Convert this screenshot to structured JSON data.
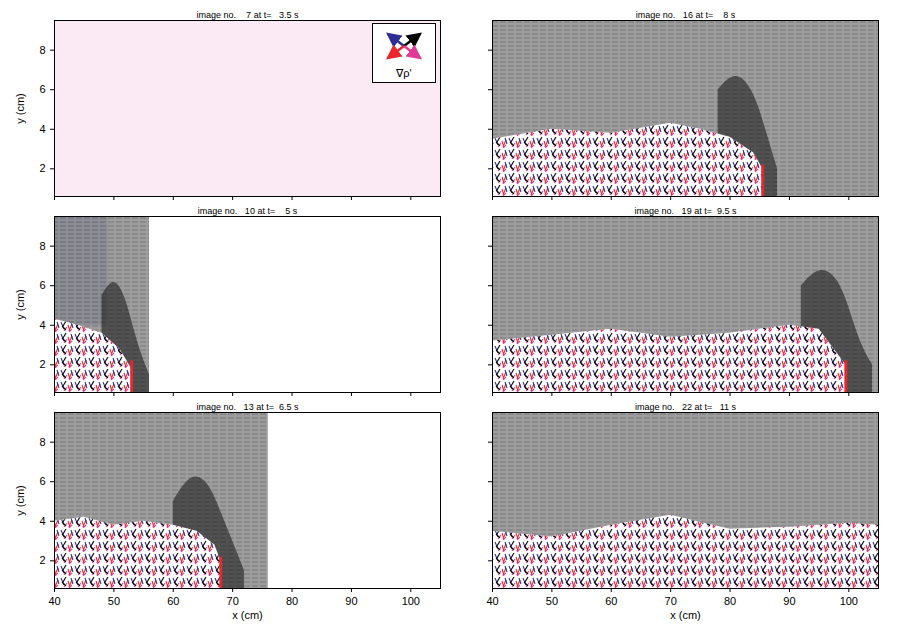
{
  "chart_data": {
    "type": "vector_field",
    "xlim": [
      40,
      105
    ],
    "ylim": [
      0.6,
      9.5
    ],
    "xticks": [
      40,
      50,
      60,
      70,
      80,
      90,
      100
    ],
    "yticks": [
      2,
      4,
      6,
      8
    ],
    "arrow_key": {
      "label": "∇ρ'",
      "colors": [
        "#2e2e96",
        "#000000",
        "#e8262b",
        "#e23a96"
      ]
    },
    "panels": [
      {
        "title": "image no.    7 at t=   3.5 s",
        "y_label": "y (cm)",
        "tick_labels": "y",
        "legend": "top-right",
        "tint": {
          "x": [
            40,
            105
          ],
          "y": [
            0.6,
            9.5
          ],
          "color": "#f9e0ee"
        },
        "shade_x_end": null,
        "head": null,
        "layer": null,
        "front": null
      },
      {
        "title": "image no.   10 at t=    5 s",
        "y_label": "y (cm)",
        "tick_labels": "y",
        "tint": {
          "x": [
            40,
            49
          ],
          "y": [
            4,
            9.5
          ],
          "color": "#6064b4"
        },
        "shade_x_end": 56,
        "head": {
          "x": [
            48,
            50,
            52,
            54,
            56
          ],
          "top": [
            5.5,
            6.5,
            5.5,
            3,
            1.5
          ]
        },
        "layer": {
          "x": [
            40,
            44,
            48,
            51,
            53
          ],
          "top": [
            4.3,
            4.0,
            3.6,
            2.8,
            1.8
          ]
        },
        "front": {
          "x": 53,
          "y": [
            0.6,
            2.2
          ]
        }
      },
      {
        "title": "image no.   13 at t=  6.5 s",
        "y_label": "y (cm)",
        "x_label": "x (cm)",
        "tick_labels": true,
        "tint": null,
        "shade_x_end": 76,
        "head": {
          "x": [
            60,
            63,
            66,
            68,
            70,
            72
          ],
          "top": [
            5,
            6.5,
            6,
            4.5,
            3,
            1.5
          ]
        },
        "layer": {
          "x": [
            40,
            45,
            50,
            55,
            60,
            64,
            67,
            68
          ],
          "top": [
            4.0,
            4.2,
            3.8,
            4.0,
            3.8,
            3.5,
            2.8,
            2.0
          ]
        },
        "front": {
          "x": 68,
          "y": [
            0.6,
            2.2
          ]
        }
      },
      {
        "title": "image no.   16 at t=    8 s",
        "tick_labels": false,
        "tint": null,
        "shade_x_end": 105,
        "head": {
          "x": [
            78,
            81,
            84,
            86,
            88
          ],
          "top": [
            6,
            7,
            6,
            4,
            2
          ]
        },
        "layer": {
          "x": [
            40,
            50,
            60,
            70,
            75,
            80,
            84,
            85.5
          ],
          "top": [
            3.5,
            4.0,
            3.8,
            4.3,
            4.0,
            3.6,
            2.8,
            2.0
          ]
        },
        "front": {
          "x": 85.5,
          "y": [
            0.6,
            2.2
          ]
        }
      },
      {
        "title": "image no.   19 at t=  9.5 s",
        "tick_labels": false,
        "tint": null,
        "shade_x_end": 105,
        "head": {
          "x": [
            92,
            95,
            98,
            100,
            102,
            104
          ],
          "top": [
            6,
            7,
            6.5,
            5,
            3,
            2
          ]
        },
        "layer": {
          "x": [
            40,
            50,
            60,
            70,
            80,
            90,
            95,
            99.5
          ],
          "top": [
            3.2,
            3.5,
            3.8,
            3.4,
            3.6,
            4.0,
            3.8,
            2.0
          ]
        },
        "front": {
          "x": 99.5,
          "y": [
            0.6,
            2.2
          ]
        }
      },
      {
        "title": "image no.   22 at t=   11 s",
        "x_label": "x (cm)",
        "tick_labels": "x",
        "tint": null,
        "shade_x_end": 105,
        "head": null,
        "layer": {
          "x": [
            40,
            50,
            60,
            70,
            80,
            90,
            100,
            105
          ],
          "top": [
            3.5,
            3.2,
            3.8,
            4.3,
            3.6,
            3.7,
            3.9,
            3.8
          ]
        },
        "front": null
      }
    ]
  }
}
